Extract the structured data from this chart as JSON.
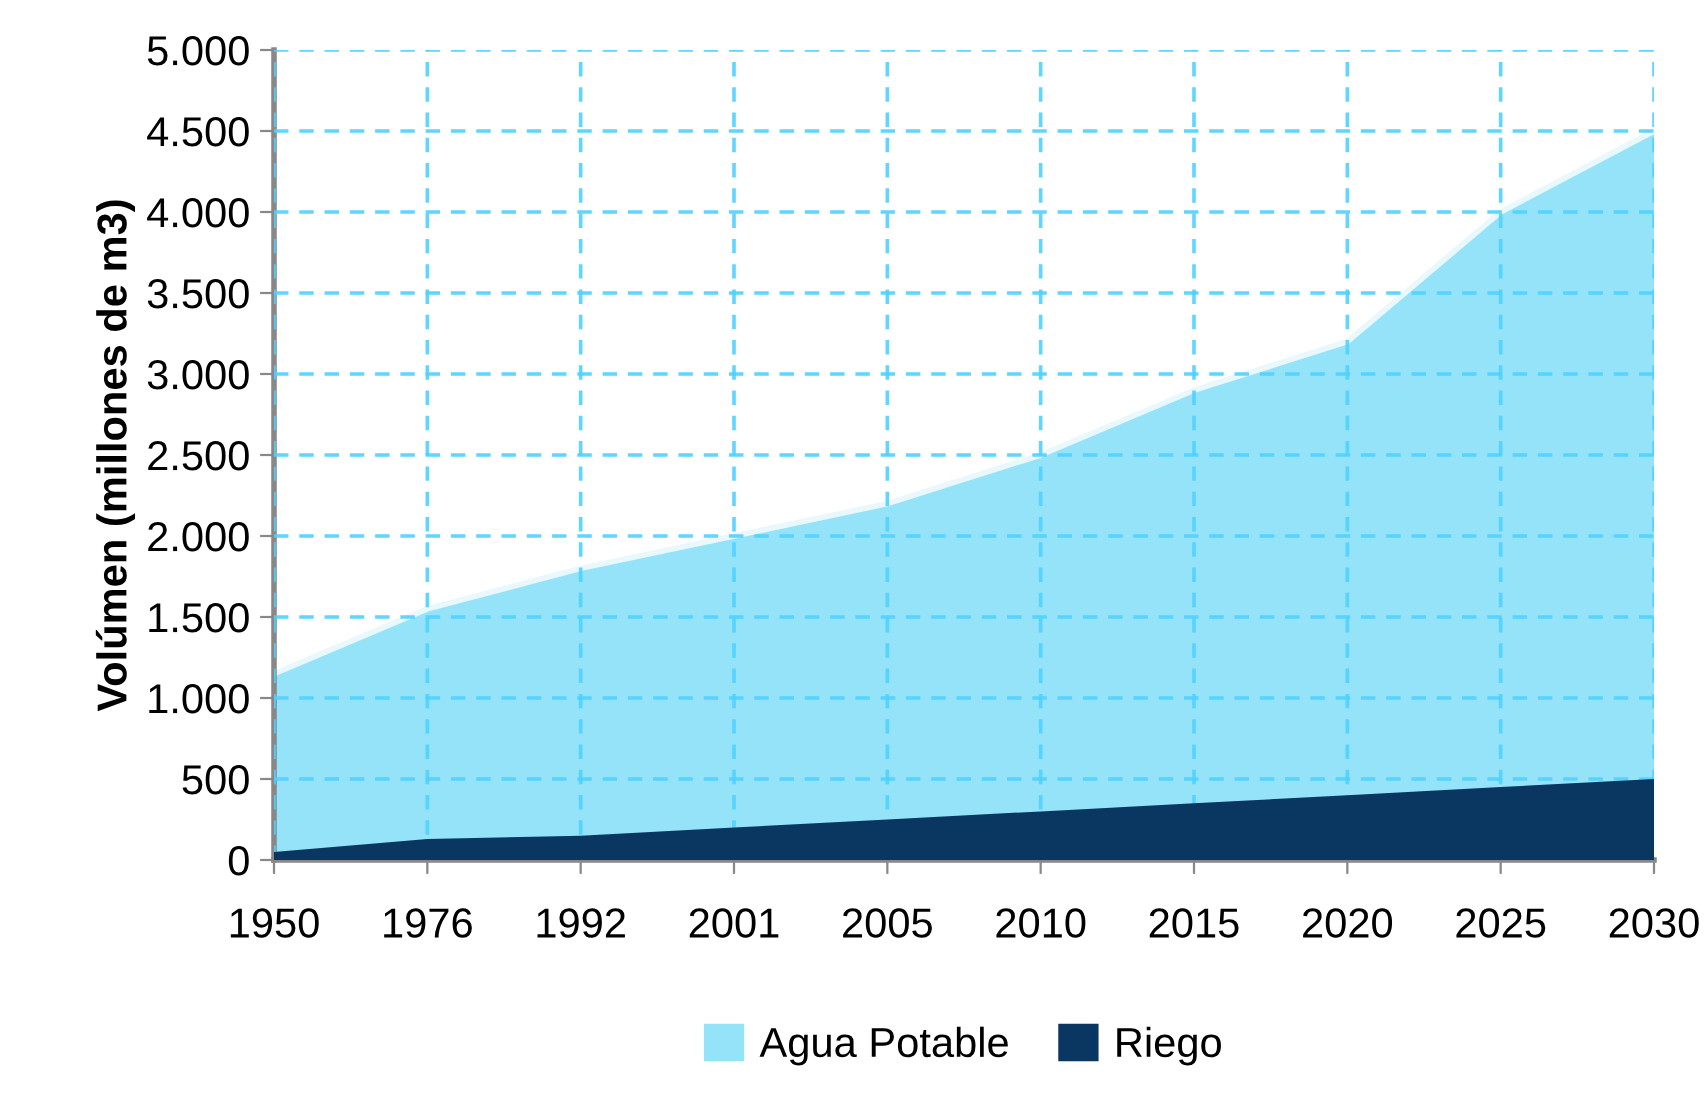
{
  "chart_data": {
    "type": "area",
    "ylabel": "Volúmen (millones de m3)",
    "categories": [
      "1950",
      "1976",
      "1992",
      "2001",
      "2005",
      "2010",
      "2015",
      "2020",
      "2025",
      "2030"
    ],
    "series": [
      {
        "name": "Agua Potable",
        "color": "#95e3f9",
        "values": [
          1150,
          1550,
          1800,
          2000,
          2200,
          2500,
          2900,
          3200,
          4000,
          4500
        ]
      },
      {
        "name": "Riego",
        "color": "#0a3761",
        "values": [
          50,
          130,
          150,
          200,
          250,
          300,
          350,
          400,
          450,
          500
        ]
      }
    ],
    "ylim": [
      0,
      5000
    ],
    "yticks": [
      {
        "value": 0,
        "label": "0"
      },
      {
        "value": 500,
        "label": "500"
      },
      {
        "value": 1000,
        "label": "1.000"
      },
      {
        "value": 1500,
        "label": "1.500"
      },
      {
        "value": 2000,
        "label": "2.000"
      },
      {
        "value": 2500,
        "label": "2.500"
      },
      {
        "value": 3000,
        "label": "3.000"
      },
      {
        "value": 3500,
        "label": "3.500"
      },
      {
        "value": 4000,
        "label": "4.000"
      },
      {
        "value": 4500,
        "label": "4.500"
      },
      {
        "value": 5000,
        "label": "5.000"
      }
    ],
    "grid": true,
    "legend": "bottom",
    "line_style": "dashed"
  }
}
